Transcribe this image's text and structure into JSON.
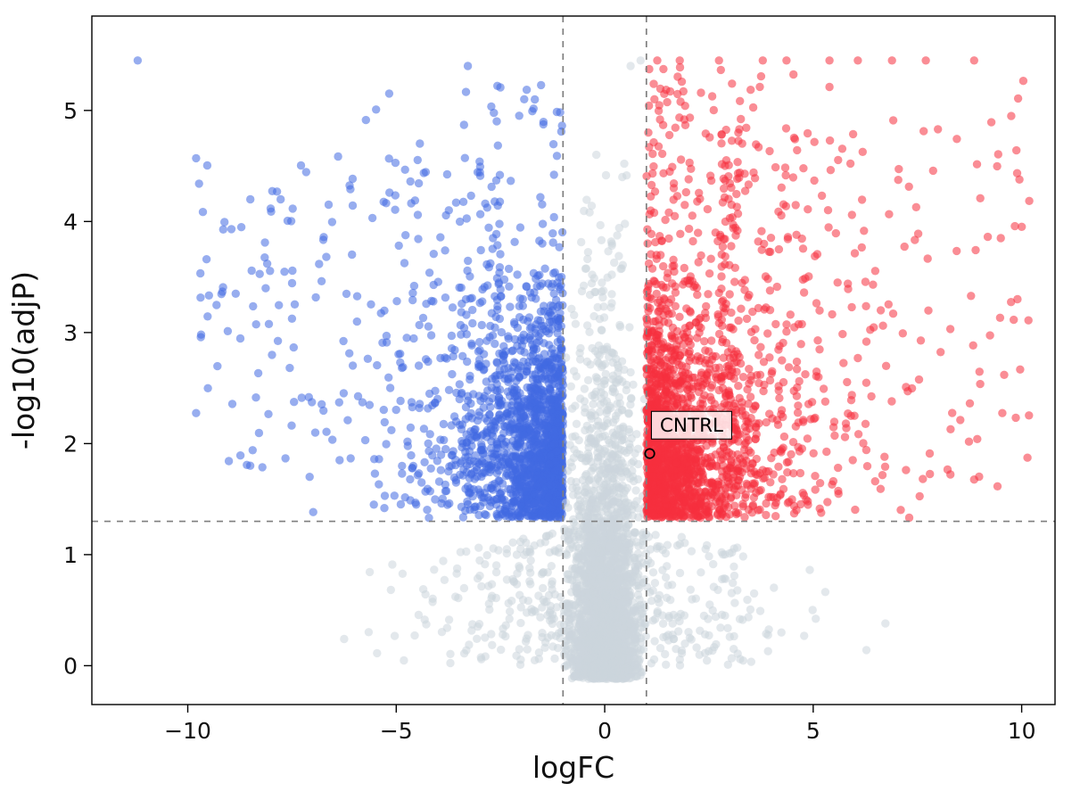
{
  "figure": {
    "background": "#ffffff"
  },
  "chart_data": {
    "type": "scatter",
    "subtype": "volcano-plot",
    "title": "",
    "xlabel": "logFC",
    "ylabel": "-log10(adjP)",
    "xlim": [
      -12.3,
      10.8
    ],
    "ylim": [
      -0.35,
      5.85
    ],
    "xticks": [
      -10,
      -5,
      0,
      5,
      10
    ],
    "yticks": [
      0,
      1,
      2,
      3,
      4,
      5
    ],
    "grid": false,
    "legend": "none",
    "thresholds": {
      "fold_change_lines_x": [
        -1,
        1
      ],
      "significance_line_y": 1.3,
      "line_style": "dashed",
      "line_color": "#7f7f7f"
    },
    "annotation": {
      "label": "CNTRL",
      "point_x": 1.08,
      "point_y": 1.91,
      "box_x": 1.12,
      "box_y": 2.29
    },
    "style": {
      "marker_radius_px": 4.7,
      "marker_opacity": 0.55,
      "frame_color": "#000000",
      "tick_label_color": "#111111"
    },
    "seed": 42,
    "series": [
      {
        "name": "downregulated",
        "kind": "left",
        "color": "#4169e1",
        "count": 1900,
        "x_range": [
          -12.2,
          -1
        ],
        "y_min": 1.3,
        "extra_points": [
          [
            -11.2,
            5.45
          ],
          [
            -9.8,
            4.57
          ],
          [
            -9.55,
            3.66
          ],
          [
            -8.85,
            3.35
          ],
          [
            -8.5,
            4.2
          ]
        ]
      },
      {
        "name": "not_significant",
        "kind": "center",
        "color": "#ccd5dc",
        "count": 2400,
        "wing_count": 480,
        "x_range": [
          -6.8,
          6.8
        ],
        "extra_points": [
          [
            0.86,
            5.45
          ],
          [
            0.47,
            4.52
          ],
          [
            -0.2,
            4.6
          ],
          [
            0.62,
            5.4
          ]
        ]
      },
      {
        "name": "upregulated",
        "kind": "right",
        "color": "#f6303e",
        "count": 2100,
        "x_range": [
          1,
          10.2
        ],
        "y_min": 1.3,
        "extra_points": [
          [
            1.26,
            5.45
          ],
          [
            1.8,
            5.45
          ],
          [
            2.74,
            5.45
          ],
          [
            3.79,
            5.45
          ],
          [
            4.36,
            5.45
          ],
          [
            5.39,
            5.45
          ],
          [
            6.07,
            5.45
          ],
          [
            6.89,
            5.45
          ],
          [
            7.7,
            5.45
          ],
          [
            8.86,
            5.45
          ],
          [
            9.75,
            4.95
          ],
          [
            9.9,
            3.3
          ],
          [
            9.5,
            3.85
          ]
        ]
      }
    ]
  }
}
